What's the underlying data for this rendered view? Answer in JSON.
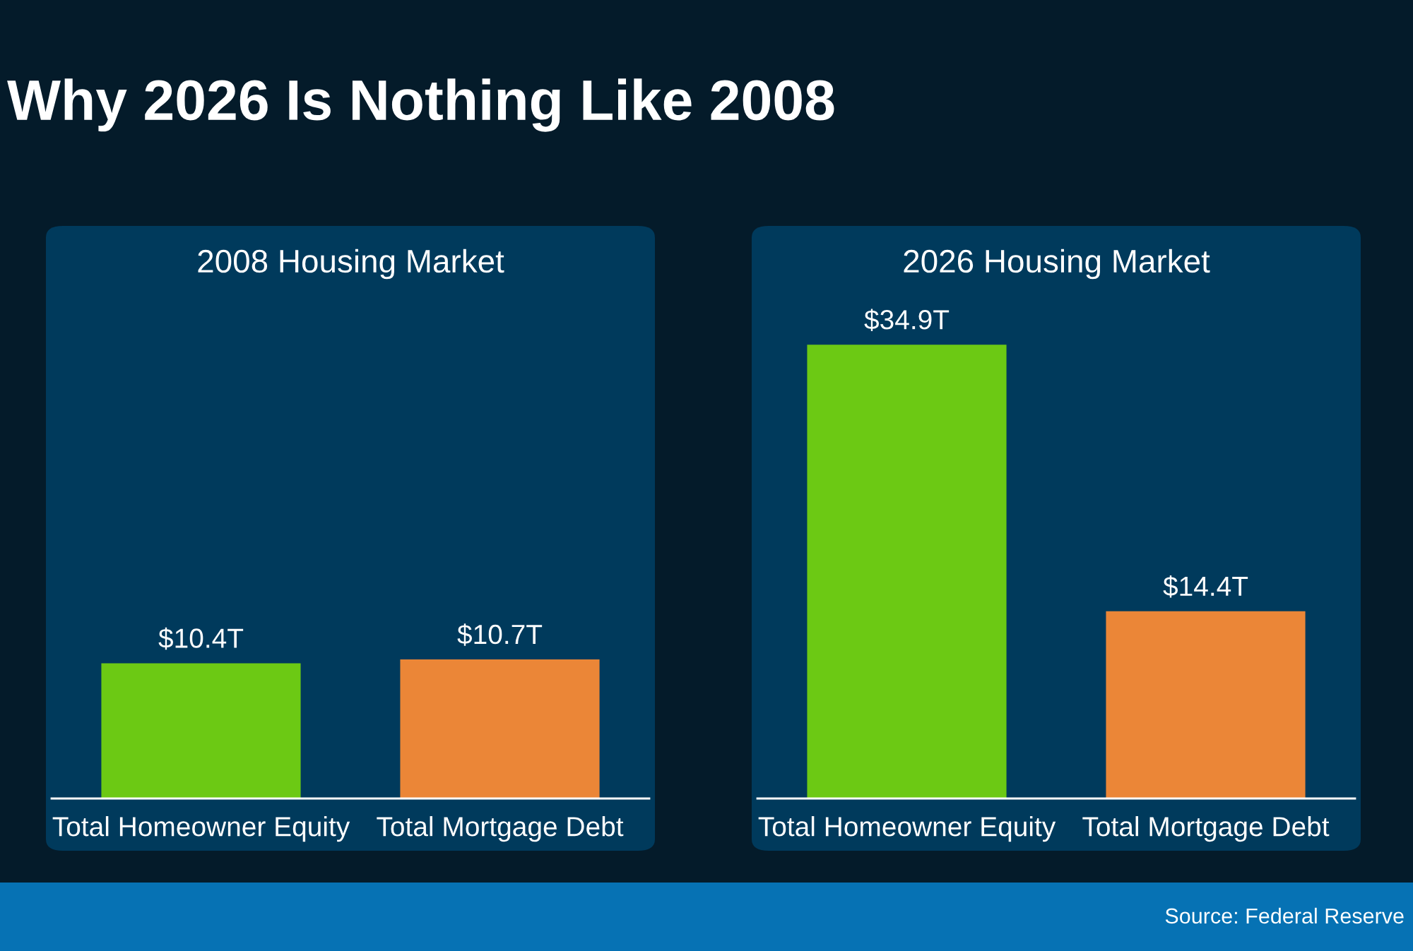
{
  "chart_data": [
    {
      "type": "bar",
      "title": "2008 Housing Market",
      "categories": [
        "Total Homeowner Equity",
        "Total Mortgage Debt"
      ],
      "values": [
        10.4,
        10.7
      ],
      "colors": [
        "#6cc914",
        "#eb8637"
      ],
      "value_labels": [
        "$10.4T",
        "$10.7T"
      ],
      "tick_labels": "x",
      "annotations": [
        "Why 2026 Is Nothing Like 2008"
      ]
    },
    {
      "type": "bar",
      "title": "2026 Housing Market",
      "categories": [
        "Total Homeowner Equity",
        "Total Mortgage Debt"
      ],
      "values": [
        34.9,
        14.4
      ],
      "colors": [
        "#6cc914",
        "#eb8637"
      ],
      "value_labels": [
        "$34.9T",
        "$14.4T"
      ],
      "tick_labels": "x",
      "annotations": [
        "Source: Federal Reserve"
      ]
    }
  ]
}
